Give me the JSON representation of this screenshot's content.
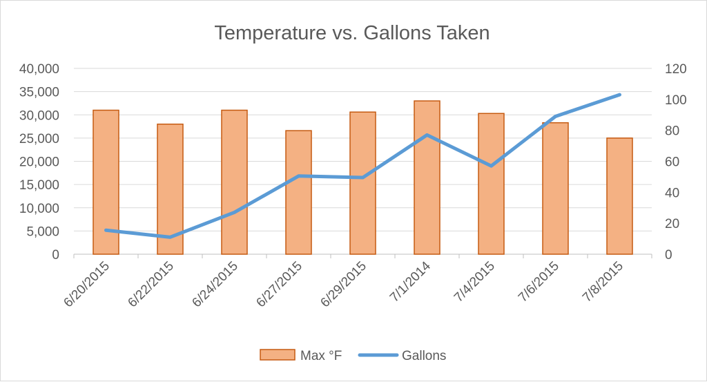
{
  "chart_data": {
    "type": "bar+line",
    "title": "Temperature vs. Gallons Taken",
    "categories": [
      "6/20/2015",
      "6/22/2015",
      "6/24/2015",
      "6/27/2015",
      "6/29/2015",
      "7/1/2014",
      "7/4/2015",
      "7/6/2015",
      "7/8/2015"
    ],
    "left_axis": {
      "ylim": [
        0,
        40000
      ],
      "ticks": [
        "0",
        "5,000",
        "10,000",
        "15,000",
        "20,000",
        "25,000",
        "30,000",
        "35,000",
        "40,000"
      ]
    },
    "right_axis": {
      "ylim": [
        0,
        120
      ],
      "ticks": [
        "0",
        "20",
        "40",
        "60",
        "80",
        "100",
        "120"
      ]
    },
    "series": [
      {
        "name": "Max °F",
        "kind": "bar",
        "axis": "left",
        "values": [
          31000,
          28000,
          31000,
          26600,
          30600,
          33000,
          30300,
          28300,
          25000
        ],
        "fill": "#f4b183",
        "stroke": "#c55a11"
      },
      {
        "name": "Gallons",
        "kind": "line",
        "axis": "right",
        "values": [
          15.5,
          11,
          27,
          50.5,
          49.5,
          77,
          57,
          89,
          103
        ],
        "stroke": "#5b9bd5"
      }
    ],
    "legend_position": "bottom",
    "grid": true
  }
}
